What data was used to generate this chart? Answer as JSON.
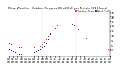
{
  "title": "Milw. Weather: Outdoor Temp vs Wind Chill per Minute (24 Hours)",
  "title_fontsize": 3.2,
  "bg_color": "#ffffff",
  "temp_color": "#ff0000",
  "windchill_color": "#0000cc",
  "legend_temp": "Outdoor Temp",
  "legend_wc": "Wind Chill",
  "ylim": [
    -12,
    38
  ],
  "xlim": [
    0,
    1440
  ],
  "ytick_vals": [
    -5,
    0,
    5,
    10,
    15,
    20,
    25,
    30,
    35
  ],
  "dotted_vlines": [
    480,
    960
  ],
  "marker_size": 0.5,
  "tick_fontsize": 2.8,
  "temp_data_x": [
    0,
    30,
    60,
    90,
    120,
    150,
    180,
    210,
    240,
    270,
    300,
    330,
    360,
    390,
    420,
    450,
    480,
    510,
    540,
    570,
    600,
    630,
    660,
    690,
    720,
    750,
    780,
    810,
    840,
    870,
    900,
    930,
    960,
    990,
    1020,
    1050,
    1080,
    1110,
    1140,
    1170,
    1200,
    1230,
    1260,
    1290,
    1320,
    1350,
    1380,
    1410,
    1440
  ],
  "temp_data_y": [
    2,
    1,
    0,
    0,
    -2,
    -3,
    -3,
    -4,
    -4,
    -4,
    -4,
    -3,
    -3,
    -2,
    -2,
    -1,
    1,
    3,
    6,
    9,
    13,
    16,
    18,
    21,
    24,
    27,
    29,
    27,
    25,
    24,
    22,
    21,
    19,
    17,
    14,
    12,
    10,
    7,
    5,
    4,
    3,
    2,
    1,
    0,
    -1,
    -3,
    -4,
    -5,
    -6
  ],
  "wc_data_x": [
    0,
    30,
    60,
    90,
    120,
    150,
    180,
    210,
    240,
    270,
    300,
    330,
    360,
    390,
    420,
    450,
    480,
    510,
    540,
    570,
    600,
    630,
    660,
    690,
    720,
    750,
    780,
    810,
    840,
    870,
    900,
    930,
    960,
    990,
    1020,
    1050,
    1080,
    1110,
    1140,
    1170,
    1200,
    1230,
    1260,
    1290,
    1320,
    1350,
    1380,
    1410,
    1440
  ],
  "wc_data_y": [
    -5,
    -6,
    -7,
    -8,
    -9,
    -10,
    -10,
    -10,
    -10,
    -9,
    -9,
    -8,
    -8,
    -7,
    -6,
    -5,
    -3,
    -1,
    2,
    6,
    11,
    15,
    18,
    21,
    24,
    27,
    29,
    27,
    25,
    24,
    22,
    21,
    19,
    17,
    14,
    12,
    10,
    7,
    5,
    3,
    2,
    1,
    0,
    -1,
    -3,
    -5,
    -7,
    -9,
    -12
  ]
}
